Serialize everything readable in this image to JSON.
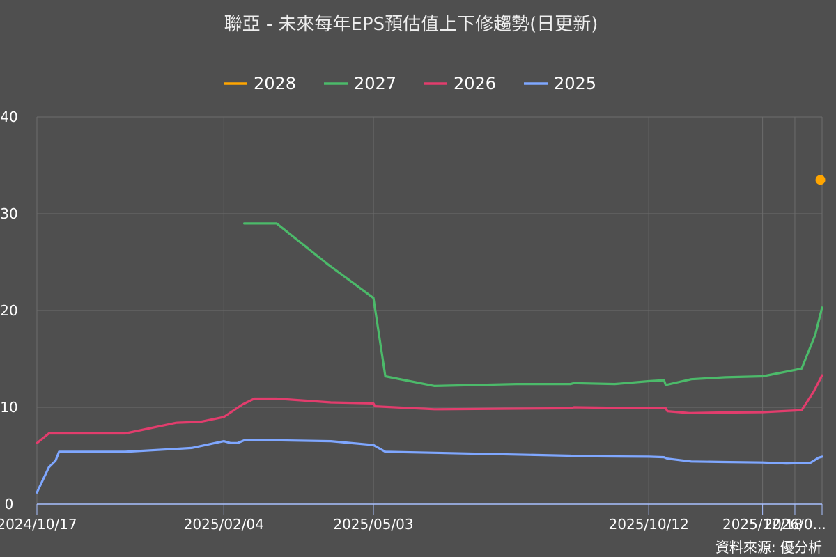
{
  "chart_data": {
    "type": "line",
    "title": "聯亞 - 未來每年EPS預估值上下修趨勢(日更新)",
    "source_note": "資料來源: 優分析",
    "ylim": [
      0,
      40
    ],
    "y_ticks": [
      "0",
      "10",
      "20",
      "30",
      "40"
    ],
    "x_range": [
      "2024-10-17",
      "2026-01-22"
    ],
    "x_ticks": [
      {
        "date": "2024-10-17",
        "label": "2024/10/17"
      },
      {
        "date": "2025-02-04",
        "label": "2025/02/04"
      },
      {
        "date": "2025-05-03",
        "label": "2025/05/03"
      },
      {
        "date": "2025-10-12",
        "label": "2025/10/12"
      },
      {
        "date": "2025-12-18",
        "label": "2025/12/18"
      },
      {
        "date": "2026-01-06",
        "label": "2026/0..."
      }
    ],
    "grid": true,
    "legend_position": "top-center",
    "series": [
      {
        "name": "2028",
        "color": "#ffa500",
        "marker": true,
        "points": [
          [
            "2026-01-21",
            33.5
          ]
        ]
      },
      {
        "name": "2027",
        "color": "#4cba6a",
        "marker": false,
        "points": [
          [
            "2025-02-16",
            29.0
          ],
          [
            "2025-03-07",
            29.0
          ],
          [
            "2025-04-06",
            24.8
          ],
          [
            "2025-05-03",
            21.3
          ],
          [
            "2025-05-10",
            13.2
          ],
          [
            "2025-06-08",
            12.2
          ],
          [
            "2025-07-26",
            12.4
          ],
          [
            "2025-08-27",
            12.4
          ],
          [
            "2025-08-29",
            12.5
          ],
          [
            "2025-09-22",
            12.4
          ],
          [
            "2025-10-12",
            12.7
          ],
          [
            "2025-10-21",
            12.8
          ],
          [
            "2025-10-22",
            12.3
          ],
          [
            "2025-11-06",
            12.9
          ],
          [
            "2025-11-26",
            13.1
          ],
          [
            "2025-12-18",
            13.2
          ],
          [
            "2026-01-10",
            14.0
          ],
          [
            "2026-01-18",
            17.5
          ],
          [
            "2026-01-22",
            20.3
          ]
        ]
      },
      {
        "name": "2026",
        "color": "#e23d6d",
        "marker": false,
        "points": [
          [
            "2024-10-17",
            6.3
          ],
          [
            "2024-10-24",
            7.3
          ],
          [
            "2024-12-08",
            7.3
          ],
          [
            "2025-01-07",
            8.4
          ],
          [
            "2025-01-21",
            8.5
          ],
          [
            "2025-02-04",
            9.0
          ],
          [
            "2025-02-15",
            10.3
          ],
          [
            "2025-02-22",
            10.9
          ],
          [
            "2025-03-07",
            10.9
          ],
          [
            "2025-04-08",
            10.5
          ],
          [
            "2025-05-03",
            10.4
          ],
          [
            "2025-05-04",
            10.1
          ],
          [
            "2025-06-08",
            9.8
          ],
          [
            "2025-08-27",
            9.9
          ],
          [
            "2025-08-29",
            10.0
          ],
          [
            "2025-10-12",
            9.9
          ],
          [
            "2025-10-22",
            9.9
          ],
          [
            "2025-10-23",
            9.6
          ],
          [
            "2025-11-05",
            9.4
          ],
          [
            "2025-11-22",
            9.45
          ],
          [
            "2025-12-18",
            9.5
          ],
          [
            "2026-01-10",
            9.7
          ],
          [
            "2026-01-17",
            11.6
          ],
          [
            "2026-01-22",
            13.3
          ]
        ]
      },
      {
        "name": "2025",
        "color": "#7fa7ff",
        "marker": false,
        "points": [
          [
            "2024-10-17",
            1.2
          ],
          [
            "2024-10-24",
            3.8
          ],
          [
            "2024-10-28",
            4.5
          ],
          [
            "2024-10-30",
            5.4
          ],
          [
            "2024-12-08",
            5.4
          ],
          [
            "2025-01-16",
            5.8
          ],
          [
            "2025-02-04",
            6.5
          ],
          [
            "2025-02-08",
            6.3
          ],
          [
            "2025-02-12",
            6.3
          ],
          [
            "2025-02-16",
            6.6
          ],
          [
            "2025-03-07",
            6.6
          ],
          [
            "2025-04-08",
            6.5
          ],
          [
            "2025-05-03",
            6.1
          ],
          [
            "2025-05-10",
            5.4
          ],
          [
            "2025-06-08",
            5.3
          ],
          [
            "2025-08-27",
            5.0
          ],
          [
            "2025-08-29",
            4.95
          ],
          [
            "2025-10-12",
            4.9
          ],
          [
            "2025-10-21",
            4.85
          ],
          [
            "2025-10-23",
            4.7
          ],
          [
            "2025-11-06",
            4.4
          ],
          [
            "2025-11-25",
            4.35
          ],
          [
            "2025-12-18",
            4.3
          ],
          [
            "2026-01-01",
            4.2
          ],
          [
            "2026-01-15",
            4.25
          ],
          [
            "2026-01-20",
            4.8
          ],
          [
            "2026-01-22",
            4.9
          ]
        ]
      }
    ]
  }
}
